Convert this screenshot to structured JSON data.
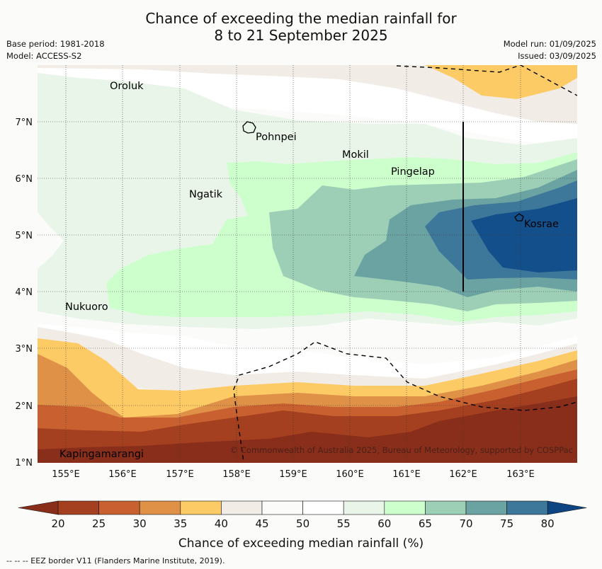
{
  "title_line1": "Chance of exceeding the median rainfall for",
  "title_line2": "8 to 21 September 2025",
  "base_period": "Base period: 1981-2018",
  "model": "Model: ACCESS-S2",
  "model_run": "Model run: 01/09/2025",
  "issued": "Issued: 03/09/2025",
  "copyright": "© Commonwealth of Australia 2025, Bureau of Meteorology, supported by COSPPac",
  "footer_note": "--  --  -- EEZ border V11 (Flanders Marine Institute, 2019).",
  "colorbar": {
    "label": "Chance of exceeding median rainfall (%)",
    "ticks": [
      "20",
      "25",
      "30",
      "35",
      "40",
      "45",
      "50",
      "55",
      "60",
      "65",
      "70",
      "75",
      "80"
    ],
    "colors": [
      "#a4401f",
      "#c8612f",
      "#df9147",
      "#fdcb66",
      "#f2ece6",
      "#fbfcfa",
      "#ffffff",
      "#eaf5e9",
      "#ccffcc",
      "#9ccfb5",
      "#6ba3a3",
      "#3d7799",
      "#134f8b"
    ],
    "under_color": "#8a2e1c",
    "over_color": "#0d4583"
  },
  "map_data": {
    "lon_range": [
      154.5,
      164
    ],
    "lat_range": [
      1,
      8
    ],
    "x_ticks": [
      "155°E",
      "156°E",
      "157°E",
      "158°E",
      "159°E",
      "160°E",
      "161°E",
      "162°E",
      "163°E"
    ],
    "y_ticks": [
      "1°N",
      "2°N",
      "3°N",
      "4°N",
      "5°N",
      "6°N",
      "7°N"
    ],
    "places": [
      {
        "name": "Oroluk",
        "lon": 155.8,
        "lat": 7.65
      },
      {
        "name": "Pohnpei",
        "lon": 158.3,
        "lat": 6.85
      },
      {
        "name": "Mokil",
        "lon": 159.8,
        "lat": 6.65
      },
      {
        "name": "Pingelap",
        "lon": 160.7,
        "lat": 6.2
      },
      {
        "name": "Ngatik",
        "lon": 157.3,
        "lat": 5.8
      },
      {
        "name": "Kosrae",
        "lon": 163.0,
        "lat": 5.3
      },
      {
        "name": "Nukuoro",
        "lon": 155.0,
        "lat": 3.85
      },
      {
        "name": "Kapingamarangi",
        "lon": 154.9,
        "lat": 1.08
      }
    ]
  }
}
